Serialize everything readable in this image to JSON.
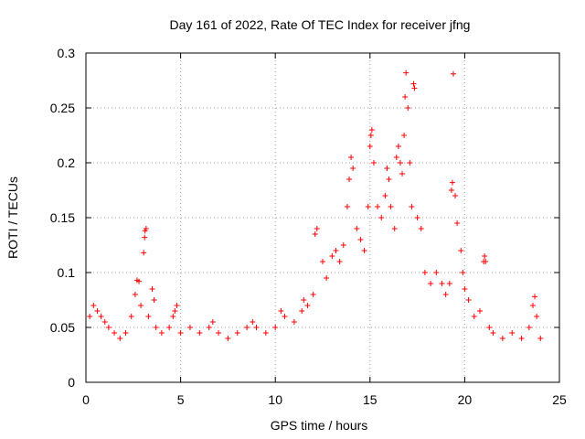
{
  "chart_data": {
    "type": "scatter",
    "title": "Day 161 of 2022, Rate Of TEC Index for receiver jfng",
    "xlabel": "GPS time / hours",
    "ylabel": "ROTI / TECUs",
    "xlim": [
      0,
      25
    ],
    "ylim": [
      0,
      0.3
    ],
    "xticks": [
      0,
      5,
      10,
      15,
      20,
      25
    ],
    "xtick_labels": [
      "0",
      "5",
      "10",
      "15",
      "20",
      "25"
    ],
    "yticks": [
      0,
      0.05,
      0.1,
      0.15,
      0.2,
      0.25,
      0.3
    ],
    "ytick_labels": [
      "0",
      "0.05",
      "0.1",
      "0.15",
      "0.2",
      "0.25",
      "0.3"
    ],
    "grid": true,
    "marker": "plus",
    "color": "#ff0000",
    "series": [
      {
        "name": "ROTI",
        "points": [
          [
            0.2,
            0.06
          ],
          [
            0.4,
            0.07
          ],
          [
            0.6,
            0.065
          ],
          [
            0.8,
            0.06
          ],
          [
            1.0,
            0.055
          ],
          [
            1.2,
            0.05
          ],
          [
            1.5,
            0.045
          ],
          [
            1.8,
            0.04
          ],
          [
            2.1,
            0.045
          ],
          [
            2.4,
            0.06
          ],
          [
            2.6,
            0.08
          ],
          [
            2.7,
            0.093
          ],
          [
            2.8,
            0.092
          ],
          [
            2.9,
            0.07
          ],
          [
            3.05,
            0.118
          ],
          [
            3.1,
            0.132
          ],
          [
            3.12,
            0.138
          ],
          [
            3.18,
            0.14
          ],
          [
            3.3,
            0.06
          ],
          [
            3.5,
            0.085
          ],
          [
            3.6,
            0.075
          ],
          [
            3.7,
            0.05
          ],
          [
            4.0,
            0.045
          ],
          [
            4.4,
            0.05
          ],
          [
            4.6,
            0.06
          ],
          [
            4.7,
            0.065
          ],
          [
            4.8,
            0.07
          ],
          [
            5.0,
            0.045
          ],
          [
            5.5,
            0.05
          ],
          [
            6.0,
            0.045
          ],
          [
            6.5,
            0.05
          ],
          [
            6.7,
            0.055
          ],
          [
            7.0,
            0.045
          ],
          [
            7.5,
            0.04
          ],
          [
            8.0,
            0.045
          ],
          [
            8.5,
            0.05
          ],
          [
            8.8,
            0.055
          ],
          [
            9.0,
            0.05
          ],
          [
            9.5,
            0.045
          ],
          [
            10.0,
            0.05
          ],
          [
            10.3,
            0.065
          ],
          [
            10.5,
            0.06
          ],
          [
            11.0,
            0.055
          ],
          [
            11.4,
            0.065
          ],
          [
            11.5,
            0.075
          ],
          [
            11.7,
            0.07
          ],
          [
            12.0,
            0.08
          ],
          [
            12.1,
            0.135
          ],
          [
            12.2,
            0.14
          ],
          [
            12.5,
            0.11
          ],
          [
            12.7,
            0.095
          ],
          [
            13.0,
            0.115
          ],
          [
            13.2,
            0.12
          ],
          [
            13.4,
            0.11
          ],
          [
            13.6,
            0.125
          ],
          [
            13.8,
            0.16
          ],
          [
            13.9,
            0.185
          ],
          [
            14.0,
            0.205
          ],
          [
            14.1,
            0.195
          ],
          [
            14.3,
            0.14
          ],
          [
            14.5,
            0.13
          ],
          [
            14.7,
            0.12
          ],
          [
            14.9,
            0.16
          ],
          [
            15.0,
            0.215
          ],
          [
            15.05,
            0.225
          ],
          [
            15.1,
            0.23
          ],
          [
            15.2,
            0.2
          ],
          [
            15.4,
            0.16
          ],
          [
            15.6,
            0.15
          ],
          [
            15.8,
            0.17
          ],
          [
            15.9,
            0.195
          ],
          [
            16.0,
            0.185
          ],
          [
            16.1,
            0.16
          ],
          [
            16.3,
            0.14
          ],
          [
            16.4,
            0.205
          ],
          [
            16.5,
            0.215
          ],
          [
            16.6,
            0.2
          ],
          [
            16.7,
            0.19
          ],
          [
            16.8,
            0.225
          ],
          [
            16.85,
            0.26
          ],
          [
            16.9,
            0.282
          ],
          [
            17.0,
            0.25
          ],
          [
            17.1,
            0.2
          ],
          [
            17.2,
            0.16
          ],
          [
            17.3,
            0.272
          ],
          [
            17.35,
            0.268
          ],
          [
            17.5,
            0.15
          ],
          [
            17.7,
            0.14
          ],
          [
            17.9,
            0.1
          ],
          [
            18.2,
            0.09
          ],
          [
            18.5,
            0.1
          ],
          [
            18.8,
            0.09
          ],
          [
            19.0,
            0.08
          ],
          [
            19.2,
            0.09
          ],
          [
            19.3,
            0.175
          ],
          [
            19.35,
            0.182
          ],
          [
            19.4,
            0.281
          ],
          [
            19.5,
            0.17
          ],
          [
            19.6,
            0.145
          ],
          [
            19.8,
            0.12
          ],
          [
            19.9,
            0.1
          ],
          [
            20.0,
            0.085
          ],
          [
            20.2,
            0.075
          ],
          [
            20.5,
            0.06
          ],
          [
            20.8,
            0.065
          ],
          [
            21.0,
            0.11
          ],
          [
            21.05,
            0.115
          ],
          [
            21.1,
            0.11
          ],
          [
            21.3,
            0.05
          ],
          [
            21.5,
            0.045
          ],
          [
            22.0,
            0.04
          ],
          [
            22.5,
            0.045
          ],
          [
            23.0,
            0.04
          ],
          [
            23.4,
            0.05
          ],
          [
            23.6,
            0.07
          ],
          [
            23.7,
            0.078
          ],
          [
            23.8,
            0.06
          ],
          [
            24.0,
            0.04
          ]
        ]
      }
    ]
  }
}
